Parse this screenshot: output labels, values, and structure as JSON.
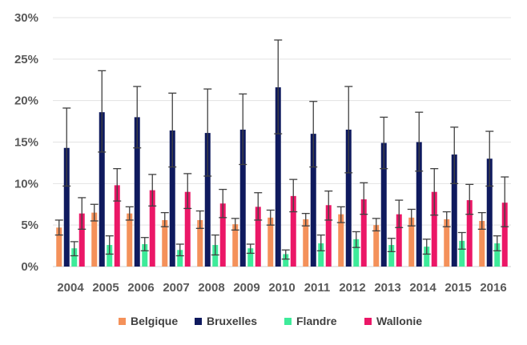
{
  "chart_data": {
    "type": "bar",
    "title": "",
    "xlabel": "",
    "ylabel": "",
    "ylim": [
      0,
      30
    ],
    "yticks": [
      "0%",
      "5%",
      "10%",
      "15%",
      "20%",
      "25%",
      "30%"
    ],
    "ytick_values": [
      0,
      5,
      10,
      15,
      20,
      25,
      30
    ],
    "grid": true,
    "legend_position": "bottom",
    "error_bars": true,
    "categories": [
      "2004",
      "2005",
      "2006",
      "2007",
      "2008",
      "2009",
      "2010",
      "2011",
      "2012",
      "2013",
      "2014",
      "2015",
      "2016"
    ],
    "series": [
      {
        "name": "Belgique",
        "color": "#F4915A",
        "values": [
          4.7,
          6.5,
          6.4,
          5.6,
          5.6,
          5.1,
          5.9,
          5.7,
          6.3,
          5.0,
          5.9,
          5.7,
          5.5
        ],
        "error_low": [
          3.8,
          5.5,
          5.6,
          4.8,
          4.6,
          4.4,
          5.0,
          4.9,
          5.3,
          4.3,
          4.9,
          4.8,
          4.5
        ],
        "error_high": [
          5.6,
          7.5,
          7.2,
          6.5,
          6.7,
          5.8,
          6.8,
          6.4,
          7.2,
          5.8,
          6.9,
          6.6,
          6.5
        ]
      },
      {
        "name": "Bruxelles",
        "color": "#0F1A5E",
        "values": [
          14.3,
          18.6,
          18.0,
          16.4,
          16.1,
          16.5,
          21.6,
          16.0,
          16.5,
          14.9,
          15.0,
          13.5,
          13.0
        ],
        "error_low": [
          9.7,
          13.8,
          14.3,
          12.0,
          10.9,
          12.3,
          16.0,
          12.0,
          11.3,
          11.8,
          11.5,
          10.0,
          9.7
        ],
        "error_high": [
          19.1,
          23.6,
          21.7,
          20.9,
          21.4,
          20.8,
          27.3,
          19.9,
          21.7,
          18.0,
          18.6,
          16.8,
          16.3
        ]
      },
      {
        "name": "Flandre",
        "color": "#3EEB9A",
        "values": [
          2.2,
          2.6,
          2.7,
          2.0,
          2.6,
          2.2,
          1.5,
          2.8,
          3.3,
          2.6,
          2.4,
          3.1,
          2.8
        ],
        "error_low": [
          1.3,
          1.5,
          1.9,
          1.3,
          1.4,
          1.6,
          0.9,
          1.9,
          2.3,
          1.8,
          1.5,
          2.1,
          1.9
        ],
        "error_high": [
          3.0,
          3.7,
          3.5,
          2.7,
          3.8,
          2.7,
          2.0,
          3.8,
          4.2,
          3.4,
          3.3,
          4.1,
          3.7
        ]
      },
      {
        "name": "Wallonie",
        "color": "#EB1767",
        "values": [
          6.4,
          9.8,
          9.2,
          9.0,
          7.6,
          7.2,
          8.5,
          7.4,
          8.1,
          6.3,
          9.0,
          8.0,
          7.7
        ],
        "error_low": [
          4.5,
          7.9,
          7.3,
          7.0,
          5.9,
          5.6,
          6.6,
          5.6,
          6.3,
          4.7,
          6.2,
          6.3,
          4.8
        ],
        "error_high": [
          8.3,
          11.8,
          11.1,
          11.2,
          9.3,
          8.9,
          10.5,
          9.1,
          10.1,
          8.0,
          11.8,
          9.9,
          10.8
        ]
      }
    ]
  }
}
